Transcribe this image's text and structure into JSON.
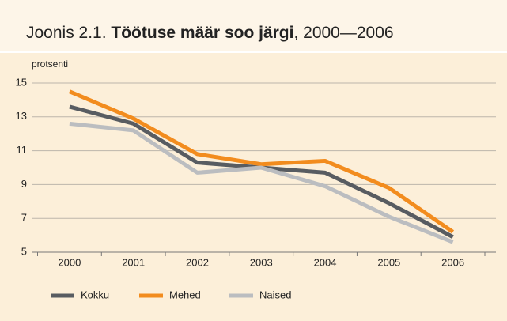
{
  "chart_data": {
    "type": "line",
    "title": [
      "Joonis 2.1. ",
      "Töötuse määr soo järgi",
      ", 2000—2006"
    ],
    "y_label": "protsenti",
    "categories": [
      "2000",
      "2001",
      "2002",
      "2003",
      "2004",
      "2005",
      "2006"
    ],
    "series": [
      {
        "name": "Kokku",
        "color": "#585c61",
        "values": [
          13.6,
          12.6,
          10.3,
          10.0,
          9.7,
          7.9,
          5.9
        ]
      },
      {
        "name": "Mehed",
        "color": "#f28c1e",
        "values": [
          14.5,
          12.9,
          10.8,
          10.2,
          10.4,
          8.8,
          6.2
        ]
      },
      {
        "name": "Naised",
        "color": "#bbbdc0",
        "values": [
          12.6,
          12.2,
          9.7,
          10.0,
          8.9,
          7.1,
          5.6
        ]
      }
    ],
    "ylim": [
      5,
      15
    ],
    "yticks": [
      5,
      7,
      9,
      11,
      13,
      15
    ],
    "grid": true,
    "legend": "bottom"
  }
}
